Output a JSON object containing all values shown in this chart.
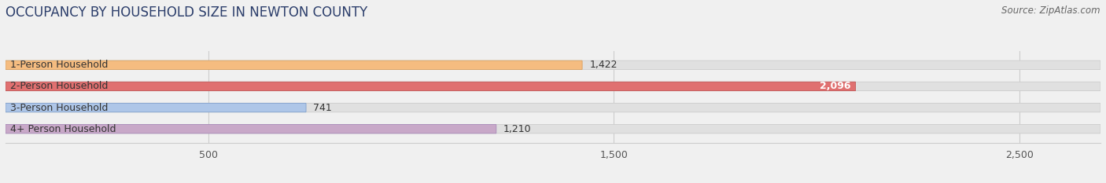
{
  "title": "OCCUPANCY BY HOUSEHOLD SIZE IN NEWTON COUNTY",
  "source": "Source: ZipAtlas.com",
  "categories": [
    "1-Person Household",
    "2-Person Household",
    "3-Person Household",
    "4+ Person Household"
  ],
  "values": [
    1422,
    2096,
    741,
    1210
  ],
  "bar_colors": [
    "#f5bc80",
    "#e07070",
    "#aec6e8",
    "#c8a8c8"
  ],
  "bar_edge_colors": [
    "#d9a060",
    "#c05555",
    "#80a0cc",
    "#a888b8"
  ],
  "xlim": [
    0,
    2700
  ],
  "xticks": [
    500,
    1500,
    2500
  ],
  "value_labels": [
    "1,422",
    "2,096",
    "741",
    "1,210"
  ],
  "background_color": "#f0f0f0",
  "bar_bg_color": "#e0e0e0",
  "bar_bg_edge_color": "#cccccc",
  "title_color": "#2c3e6b",
  "source_color": "#666666",
  "label_color": "#333333",
  "value_colors": [
    "#333333",
    "#ffffff",
    "#333333",
    "#333333"
  ],
  "bar_height": 0.42,
  "title_fontsize": 12,
  "label_fontsize": 9,
  "value_fontsize": 9,
  "tick_fontsize": 9,
  "source_fontsize": 8.5
}
